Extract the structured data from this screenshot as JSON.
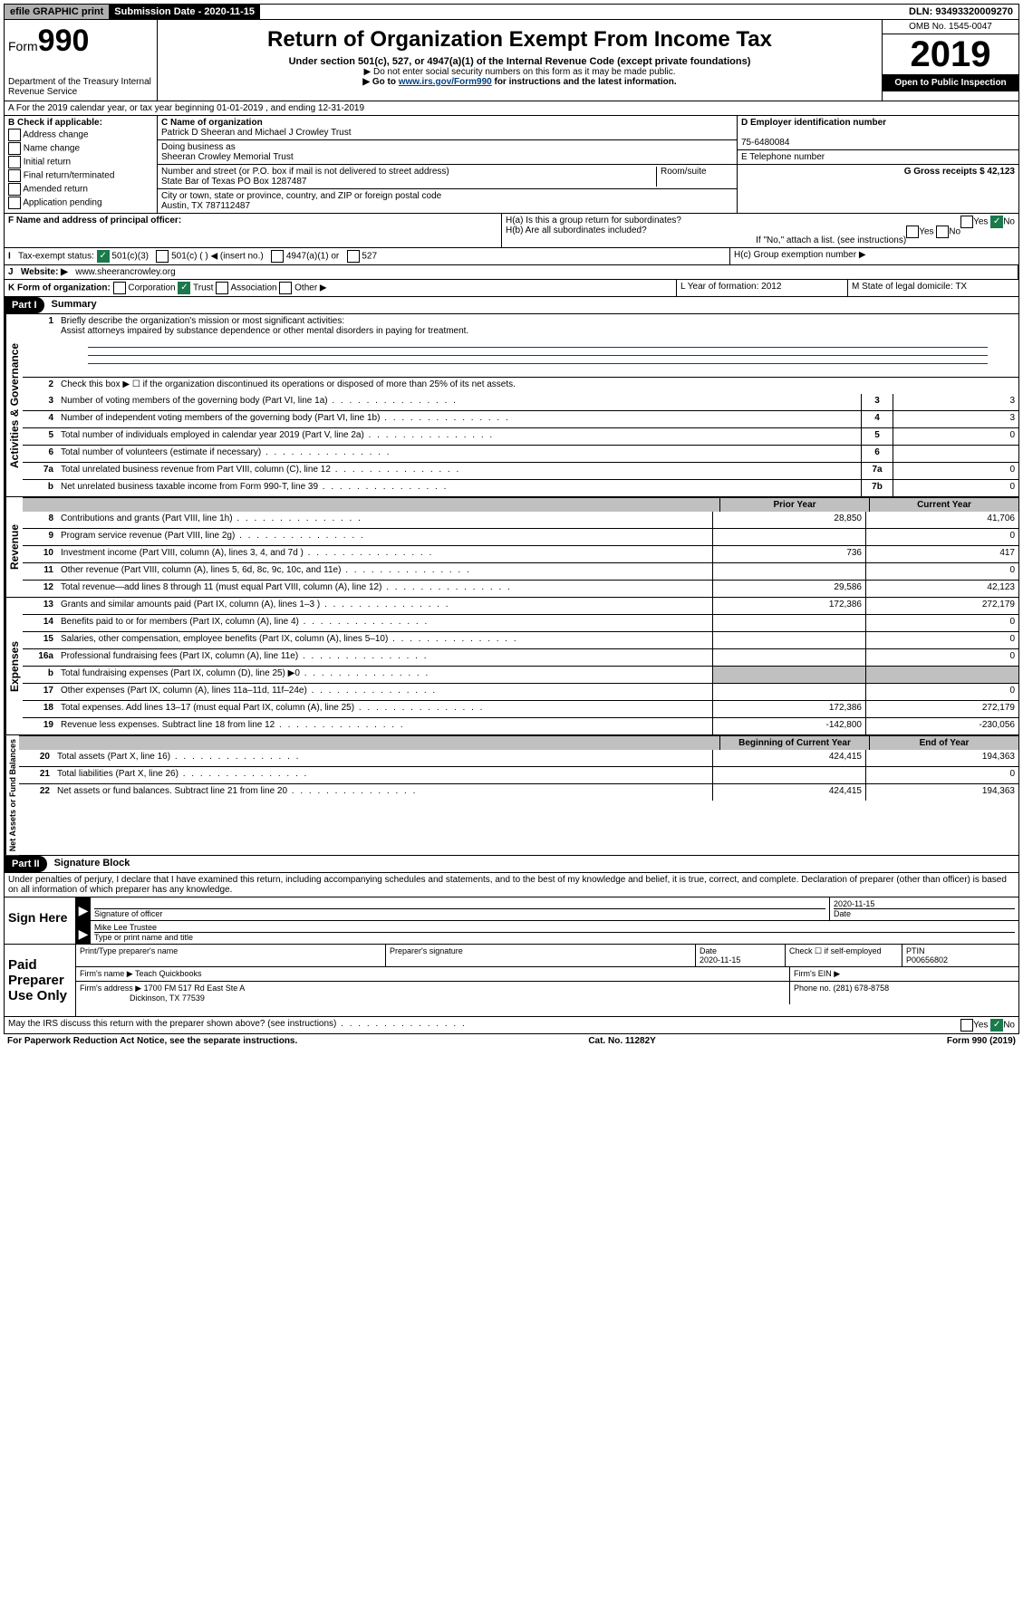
{
  "top": {
    "efile": "efile GRAPHIC print",
    "subdate_label": "Submission Date - 2020-11-15",
    "dln": "DLN: 93493320009270"
  },
  "header": {
    "form_prefix": "Form",
    "form_num": "990",
    "dept": "Department of the Treasury\nInternal Revenue Service",
    "title": "Return of Organization Exempt From Income Tax",
    "sub": "Under section 501(c), 527, or 4947(a)(1) of the Internal Revenue Code (except private foundations)",
    "note1": "▶ Do not enter social security numbers on this form as it may be made public.",
    "note2_pre": "▶ Go to ",
    "note2_link": "www.irs.gov/Form990",
    "note2_post": " for instructions and the latest information.",
    "omb": "OMB No. 1545-0047",
    "year": "2019",
    "open": "Open to Public Inspection"
  },
  "row_a": "A For the 2019 calendar year, or tax year beginning 01-01-2019   , and ending 12-31-2019",
  "b": {
    "label": "B Check if applicable:",
    "opts": [
      "Address change",
      "Name change",
      "Initial return",
      "Final return/terminated",
      "Amended return",
      "Application pending"
    ]
  },
  "c": {
    "name_label": "C Name of organization",
    "name": "Patrick D Sheeran and Michael J Crowley Trust",
    "dba_label": "Doing business as",
    "dba": "Sheeran Crowley Memorial Trust",
    "addr_label": "Number and street (or P.O. box if mail is not delivered to street address)",
    "room": "Room/suite",
    "addr": "State Bar of Texas PO Box 1287487",
    "city_label": "City or town, state or province, country, and ZIP or foreign postal code",
    "city": "Austin, TX  787112487"
  },
  "right": {
    "d_label": "D Employer identification number",
    "d_val": "75-6480084",
    "e_label": "E Telephone number",
    "g_label": "G Gross receipts $ 42,123"
  },
  "f": {
    "label": "F  Name and address of principal officer:"
  },
  "h": {
    "a": "H(a)  Is this a group return for subordinates?",
    "b": "H(b)  Are all subordinates included?",
    "b_note": "If \"No,\" attach a list. (see instructions)",
    "c": "H(c)  Group exemption number ▶",
    "yes": "Yes",
    "no": "No"
  },
  "i": {
    "label": "Tax-exempt status:",
    "o1": "501(c)(3)",
    "o2": "501(c) (    ) ◀ (insert no.)",
    "o3": "4947(a)(1) or",
    "o4": "527"
  },
  "j": {
    "label": "Website: ▶",
    "val": "www.sheerancrowley.org"
  },
  "k": {
    "label": "K Form of organization:",
    "opts": [
      "Corporation",
      "Trust",
      "Association",
      "Other ▶"
    ],
    "checked": 1,
    "l": "L Year of formation: 2012",
    "m": "M State of legal domicile: TX"
  },
  "part1": {
    "label": "Part I",
    "title": "Summary",
    "vert1": "Activities & Governance",
    "vert2": "Revenue",
    "vert3": "Expenses",
    "vert4": "Net Assets or Fund Balances",
    "line1": "Briefly describe the organization's mission or most significant activities:",
    "mission": "Assist attorneys impaired by substance dependence or other mental disorders in paying for treatment.",
    "line2": "Check this box ▶ ☐  if the organization discontinued its operations or disposed of more than 25% of its net assets.",
    "lines_num": [
      {
        "n": "3",
        "d": "Number of voting members of the governing body (Part VI, line 1a)",
        "b": "3",
        "v": "3"
      },
      {
        "n": "4",
        "d": "Number of independent voting members of the governing body (Part VI, line 1b)",
        "b": "4",
        "v": "3"
      },
      {
        "n": "5",
        "d": "Total number of individuals employed in calendar year 2019 (Part V, line 2a)",
        "b": "5",
        "v": "0"
      },
      {
        "n": "6",
        "d": "Total number of volunteers (estimate if necessary)",
        "b": "6",
        "v": ""
      },
      {
        "n": "7a",
        "d": "Total unrelated business revenue from Part VIII, column (C), line 12",
        "b": "7a",
        "v": "0"
      },
      {
        "n": "b",
        "d": "Net unrelated business taxable income from Form 990-T, line 39",
        "b": "7b",
        "v": "0"
      }
    ],
    "col_prior": "Prior Year",
    "col_curr": "Current Year",
    "rev": [
      {
        "n": "8",
        "d": "Contributions and grants (Part VIII, line 1h)",
        "p": "28,850",
        "c": "41,706"
      },
      {
        "n": "9",
        "d": "Program service revenue (Part VIII, line 2g)",
        "p": "",
        "c": "0"
      },
      {
        "n": "10",
        "d": "Investment income (Part VIII, column (A), lines 3, 4, and 7d )",
        "p": "736",
        "c": "417"
      },
      {
        "n": "11",
        "d": "Other revenue (Part VIII, column (A), lines 5, 6d, 8c, 9c, 10c, and 11e)",
        "p": "",
        "c": "0"
      },
      {
        "n": "12",
        "d": "Total revenue—add lines 8 through 11 (must equal Part VIII, column (A), line 12)",
        "p": "29,586",
        "c": "42,123"
      }
    ],
    "exp": [
      {
        "n": "13",
        "d": "Grants and similar amounts paid (Part IX, column (A), lines 1–3 )",
        "p": "172,386",
        "c": "272,179"
      },
      {
        "n": "14",
        "d": "Benefits paid to or for members (Part IX, column (A), line 4)",
        "p": "",
        "c": "0"
      },
      {
        "n": "15",
        "d": "Salaries, other compensation, employee benefits (Part IX, column (A), lines 5–10)",
        "p": "",
        "c": "0"
      },
      {
        "n": "16a",
        "d": "Professional fundraising fees (Part IX, column (A), line 11e)",
        "p": "",
        "c": "0"
      },
      {
        "n": "b",
        "d": "Total fundraising expenses (Part IX, column (D), line 25) ▶0",
        "p": "shaded",
        "c": "shaded"
      },
      {
        "n": "17",
        "d": "Other expenses (Part IX, column (A), lines 11a–11d, 11f–24e)",
        "p": "",
        "c": "0"
      },
      {
        "n": "18",
        "d": "Total expenses. Add lines 13–17 (must equal Part IX, column (A), line 25)",
        "p": "172,386",
        "c": "272,179"
      },
      {
        "n": "19",
        "d": "Revenue less expenses. Subtract line 18 from line 12",
        "p": "-142,800",
        "c": "-230,056"
      }
    ],
    "col_begin": "Beginning of Current Year",
    "col_end": "End of Year",
    "net": [
      {
        "n": "20",
        "d": "Total assets (Part X, line 16)",
        "p": "424,415",
        "c": "194,363"
      },
      {
        "n": "21",
        "d": "Total liabilities (Part X, line 26)",
        "p": "",
        "c": "0"
      },
      {
        "n": "22",
        "d": "Net assets or fund balances. Subtract line 21 from line 20",
        "p": "424,415",
        "c": "194,363"
      }
    ]
  },
  "part2": {
    "label": "Part II",
    "title": "Signature Block",
    "decl": "Under penalties of perjury, I declare that I have examined this return, including accompanying schedules and statements, and to the best of my knowledge and belief, it is true, correct, and complete. Declaration of preparer (other than officer) is based on all information of which preparer has any knowledge.",
    "sign_here": "Sign Here",
    "sig_officer": "Signature of officer",
    "sig_date": "2020-11-15",
    "date_label": "Date",
    "name_title": "Mike Lee Trustee",
    "type_label": "Type or print name and title",
    "paid": "Paid Preparer Use Only",
    "prep_name_label": "Print/Type preparer's name",
    "prep_sig_label": "Preparer's signature",
    "prep_date_label": "Date",
    "prep_date": "2020-11-15",
    "check_self": "Check ☐ if self-employed",
    "ptin_label": "PTIN",
    "ptin": "P00656802",
    "firm_name_label": "Firm's name    ▶",
    "firm_name": "Teach Quickbooks",
    "firm_ein_label": "Firm's EIN ▶",
    "firm_addr_label": "Firm's address ▶",
    "firm_addr": "1700 FM 517 Rd East Ste A",
    "firm_city": "Dickinson, TX  77539",
    "phone_label": "Phone no. (281) 678-8758",
    "discuss": "May the IRS discuss this return with the preparer shown above? (see instructions)",
    "yes": "Yes",
    "no": "No"
  },
  "footer": {
    "left": "For Paperwork Reduction Act Notice, see the separate instructions.",
    "mid": "Cat. No. 11282Y",
    "right": "Form 990 (2019)"
  }
}
